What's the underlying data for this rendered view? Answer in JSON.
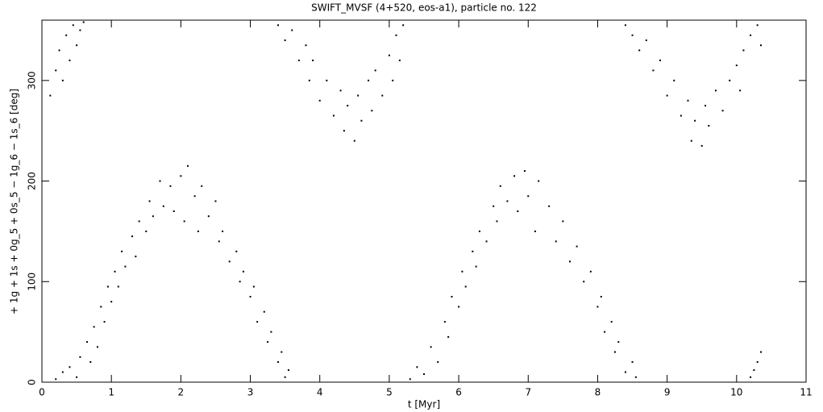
{
  "chart_data": {
    "type": "scatter",
    "title": "SWIFT_MVSF (4+520, eos-a1), particle no. 122",
    "x_label": "t [Myr]",
    "y_label": "+ 1g + 1s + 0g_5 + 0s_5 − 1g_6 − 1s_6 [deg]",
    "color": "#000000",
    "xlim": [
      0,
      11
    ],
    "ylim": [
      0,
      360
    ],
    "xticks": [
      0,
      1,
      2,
      3,
      4,
      5,
      6,
      7,
      8,
      9,
      10,
      11
    ],
    "yticks": [
      0,
      100,
      200,
      300
    ],
    "x": [
      0.12,
      0.2,
      0.25,
      0.3,
      0.35,
      0.4,
      0.45,
      0.5,
      0.55,
      0.6,
      0.2,
      0.3,
      0.4,
      0.5,
      0.55,
      0.65,
      0.7,
      0.75,
      0.8,
      0.85,
      0.9,
      0.95,
      1.0,
      1.05,
      1.1,
      1.15,
      1.2,
      1.3,
      1.35,
      1.4,
      1.5,
      1.55,
      1.6,
      1.7,
      1.75,
      1.85,
      1.9,
      2.0,
      2.05,
      2.1,
      2.2,
      2.25,
      2.3,
      2.4,
      2.5,
      2.55,
      2.6,
      2.7,
      2.8,
      2.85,
      2.9,
      3.0,
      3.05,
      3.1,
      3.2,
      3.25,
      3.3,
      3.4,
      3.45,
      3.5,
      3.55,
      3.4,
      3.5,
      3.6,
      3.7,
      3.8,
      3.85,
      3.9,
      4.0,
      4.1,
      4.2,
      4.3,
      4.35,
      4.4,
      4.5,
      4.55,
      4.6,
      4.7,
      4.75,
      4.8,
      4.9,
      5.0,
      5.05,
      5.1,
      5.15,
      5.2,
      5.3,
      5.4,
      5.5,
      5.6,
      5.7,
      5.8,
      5.85,
      5.9,
      6.0,
      6.05,
      6.1,
      6.2,
      6.25,
      6.3,
      6.4,
      6.5,
      6.55,
      6.6,
      6.7,
      6.8,
      6.85,
      6.95,
      7.0,
      7.1,
      7.15,
      7.3,
      7.4,
      7.5,
      7.6,
      7.7,
      7.8,
      7.9,
      8.0,
      8.05,
      8.1,
      8.2,
      8.25,
      8.3,
      8.4,
      8.5,
      8.55,
      8.4,
      8.5,
      8.6,
      8.7,
      8.8,
      8.9,
      9.0,
      9.1,
      9.2,
      9.3,
      9.35,
      9.4,
      9.5,
      9.55,
      9.6,
      9.7,
      9.8,
      9.9,
      10.0,
      10.05,
      10.1,
      10.2,
      10.3,
      10.35,
      10.2,
      10.25,
      10.3,
      10.35
    ],
    "values": [
      285,
      310,
      330,
      300,
      345,
      320,
      355,
      335,
      350,
      358,
      3,
      10,
      15,
      5,
      25,
      40,
      20,
      55,
      35,
      75,
      60,
      95,
      80,
      110,
      95,
      130,
      115,
      145,
      125,
      160,
      150,
      180,
      165,
      200,
      175,
      195,
      170,
      205,
      160,
      215,
      185,
      150,
      195,
      165,
      180,
      140,
      150,
      120,
      130,
      100,
      110,
      85,
      95,
      60,
      70,
      40,
      50,
      20,
      30,
      5,
      12,
      355,
      340,
      350,
      320,
      335,
      300,
      320,
      280,
      300,
      265,
      290,
      250,
      275,
      240,
      285,
      260,
      300,
      270,
      310,
      285,
      325,
      300,
      345,
      320,
      355,
      3,
      15,
      8,
      35,
      20,
      60,
      45,
      85,
      75,
      110,
      95,
      130,
      115,
      150,
      140,
      175,
      160,
      195,
      180,
      205,
      170,
      210,
      185,
      150,
      200,
      175,
      140,
      160,
      120,
      135,
      100,
      110,
      75,
      85,
      50,
      60,
      30,
      40,
      10,
      20,
      5,
      355,
      345,
      330,
      340,
      310,
      320,
      285,
      300,
      265,
      280,
      240,
      260,
      235,
      275,
      255,
      290,
      270,
      300,
      315,
      290,
      330,
      345,
      355,
      335,
      5,
      12,
      20,
      30
    ]
  }
}
